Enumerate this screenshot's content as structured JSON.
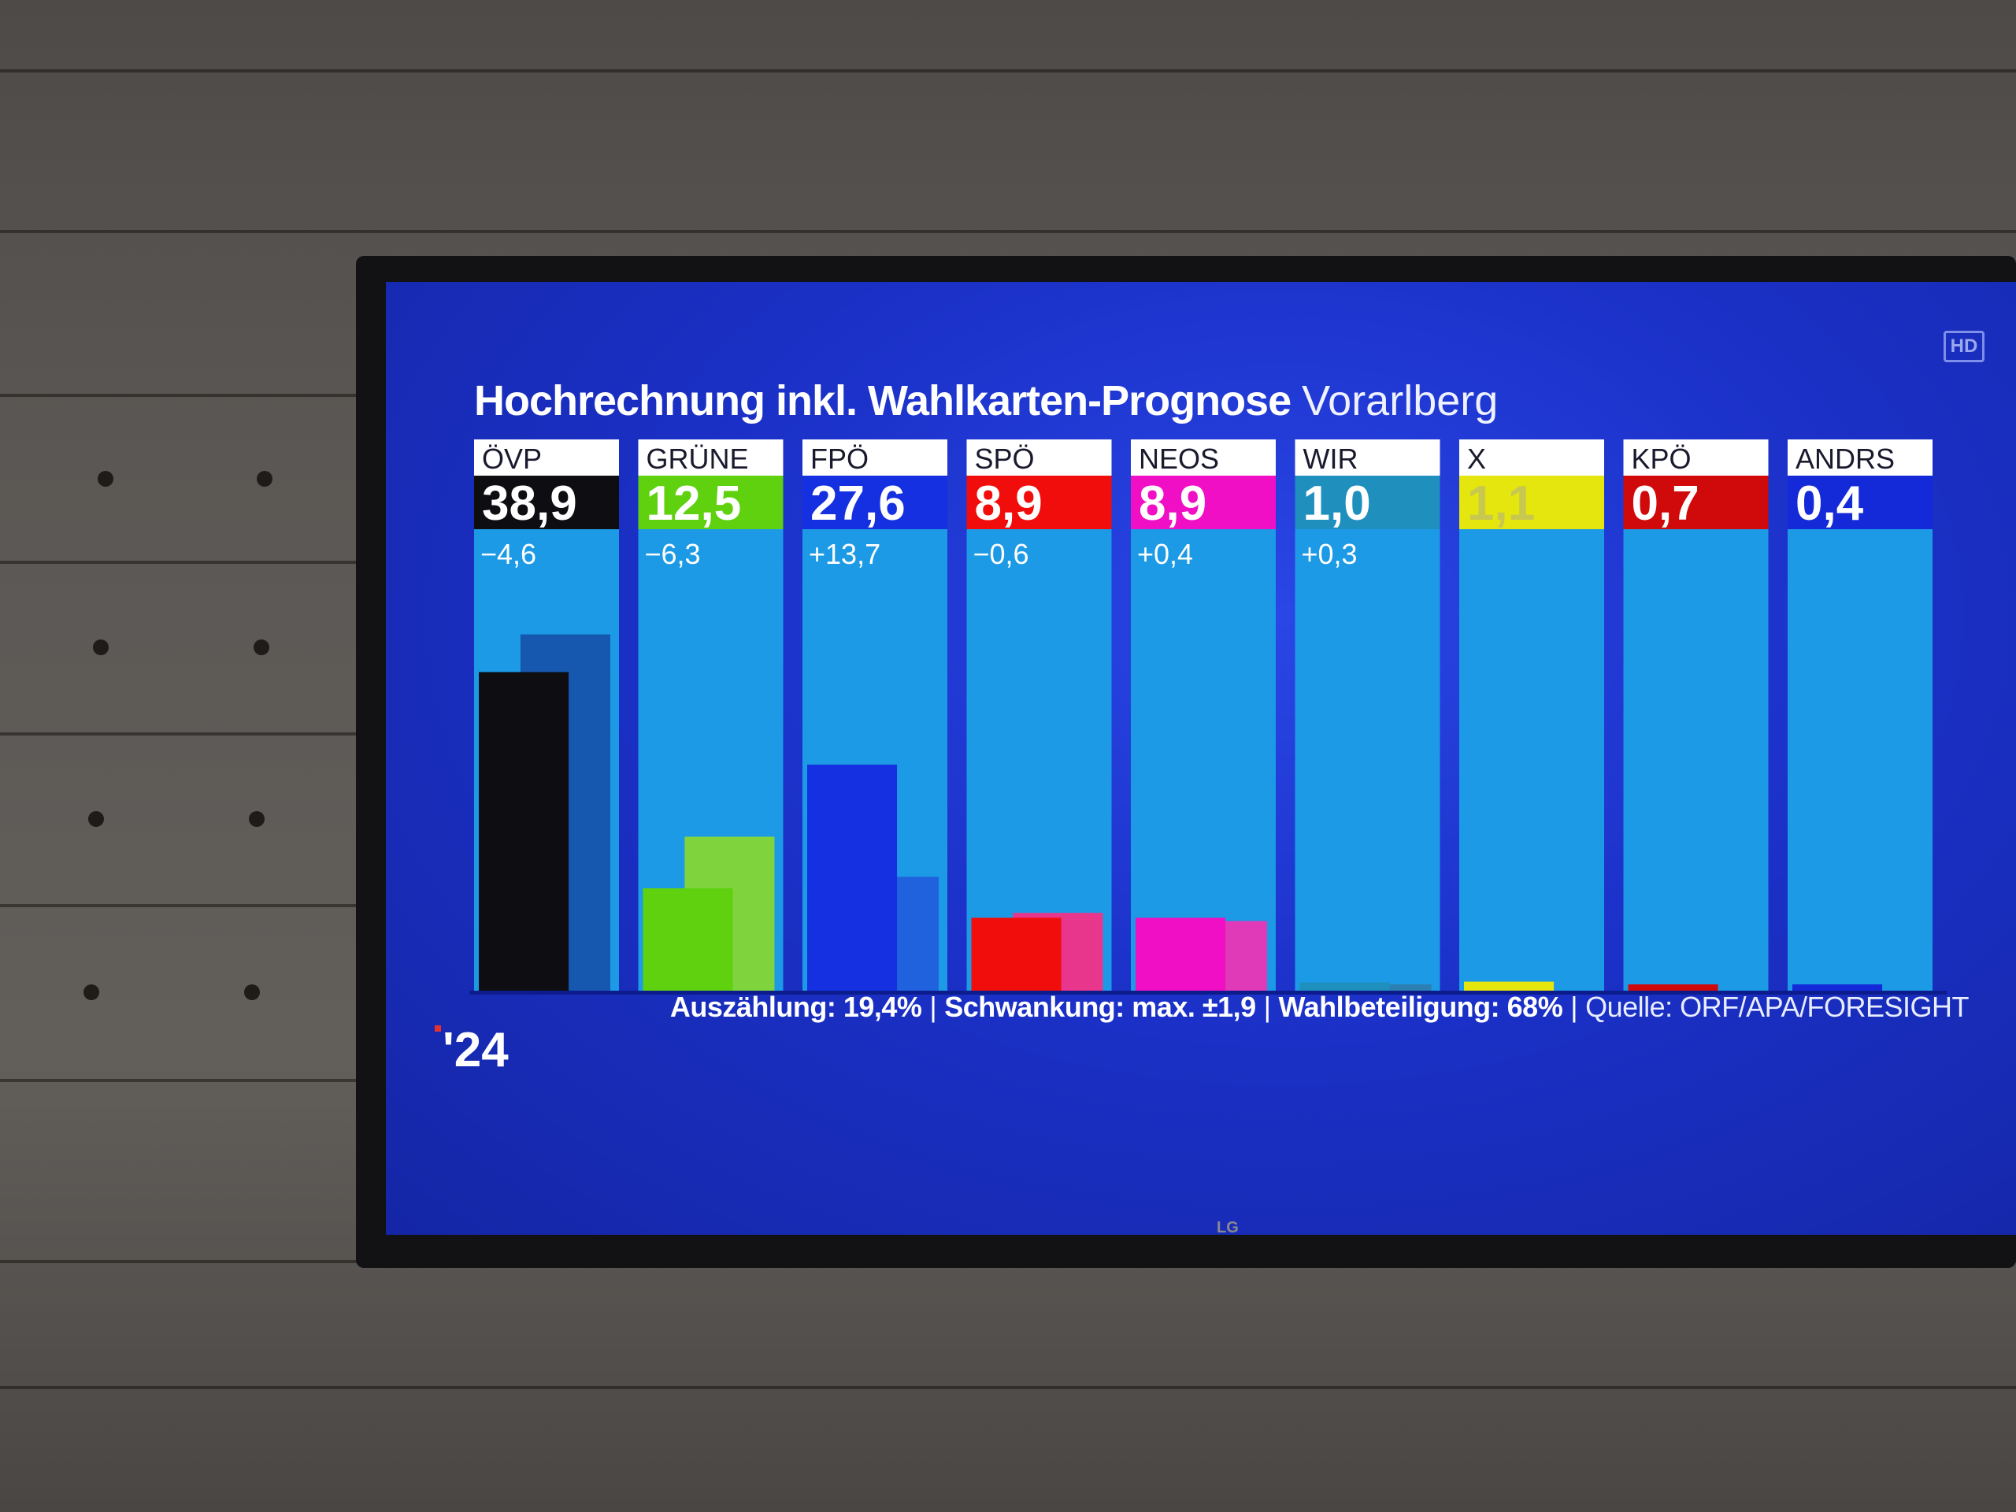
{
  "title": "Hochrechnung inkl. Wahlkarten-Prognose",
  "region": "Vorarlberg",
  "brand_logo": "'24",
  "tv_brand": "LG",
  "hd_badge": "HD",
  "footer": {
    "counted": "Auszählung: 19,4%",
    "fluctuation": "Schwankung: max. ±1,9",
    "turnout": "Wahlbeteiligung: 68%",
    "source": "Quelle: ORF/APA/FORESIGHT"
  },
  "chart_data": {
    "type": "bar",
    "title": "Hochrechnung inkl. Wahlkarten-Prognose Vorarlberg",
    "categories": [
      "ÖVP",
      "GRÜNE",
      "FPÖ",
      "SPÖ",
      "NEOS",
      "WIR",
      "X",
      "KPÖ",
      "ANDRS"
    ],
    "value_labels": [
      "38,9",
      "12,5",
      "27,6",
      "8,9",
      "8,9",
      "1,0",
      "1,1",
      "0,7",
      "0,4"
    ],
    "change_labels": [
      "−4,6",
      "−6,3",
      "+13,7",
      "−0,6",
      "+0,4",
      "+0,3",
      "",
      "",
      ""
    ],
    "series": [
      {
        "values": [
          38.9,
          12.5,
          27.6,
          8.9,
          8.9,
          1.0,
          1.1,
          0.7,
          0.4
        ]
      },
      {
        "values": [
          43.5,
          18.8,
          13.9,
          9.5,
          8.5,
          0.7,
          0,
          0,
          0
        ]
      }
    ],
    "colors": [
      "#0d0d12",
      "#5fd10f",
      "#1430e0",
      "#f20d0d",
      "#f00fc4",
      "#1f8fbd",
      "#e6e60f",
      "#d00a0a",
      "#1429d8"
    ],
    "prev_colors": [
      "#1657b0",
      "#7fd43e",
      "#2062dd",
      "#e8368c",
      "#e03ab8",
      "#2c7fb0",
      "#cfcf3a",
      "#c22",
      "#2233c8"
    ],
    "ylim": [
      0,
      50
    ],
    "grid": false,
    "legend": "none"
  }
}
